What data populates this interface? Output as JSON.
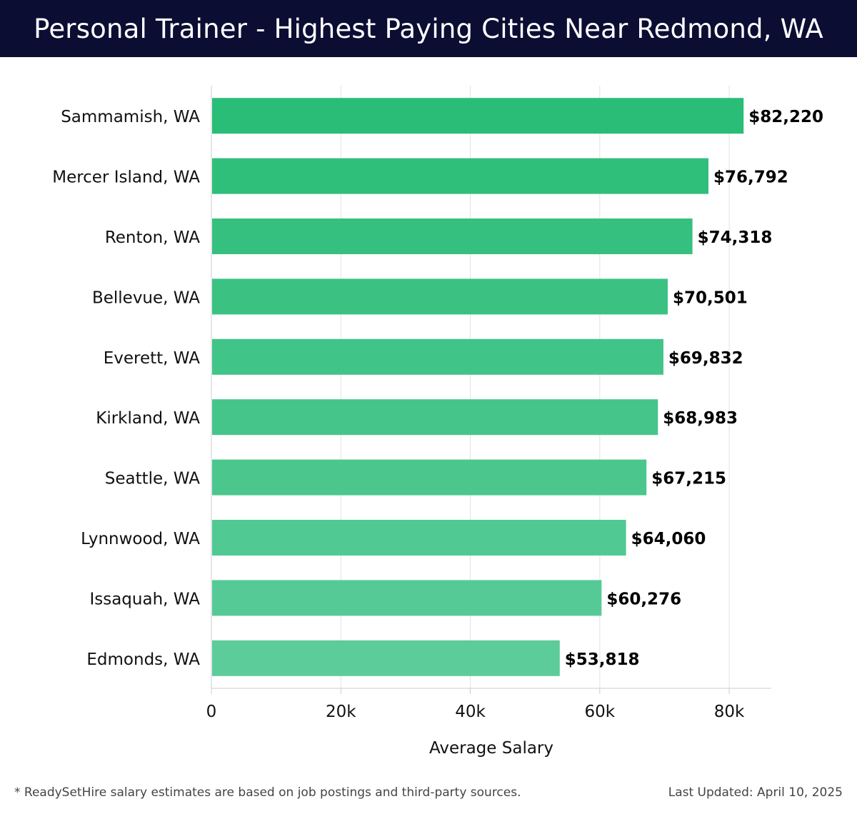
{
  "title": "Personal Trainer - Highest Paying Cities Near Redmond, WA",
  "footer": {
    "note": "* ReadySetHire salary estimates are based on job postings and third-party sources.",
    "updated": "Last Updated: April 10, 2025"
  },
  "colors": {
    "header_bg": "#0b0d33",
    "bar_top": "#2abd77",
    "bar_bottom": "#5ccc9a",
    "grid": "#e3e3e3",
    "axis": "#cccccc"
  },
  "chart_data": {
    "type": "bar",
    "orientation": "horizontal",
    "categories": [
      "Sammamish, WA",
      "Mercer Island, WA",
      "Renton, WA",
      "Bellevue, WA",
      "Everett, WA",
      "Kirkland, WA",
      "Seattle, WA",
      "Lynnwood, WA",
      "Issaquah, WA",
      "Edmonds, WA"
    ],
    "values": [
      82220,
      76792,
      74318,
      70501,
      69832,
      68983,
      67215,
      64060,
      60276,
      53818
    ],
    "value_labels": [
      "$82,220",
      "$76,792",
      "$74,318",
      "$70,501",
      "$69,832",
      "$68,983",
      "$67,215",
      "$64,060",
      "$60,276",
      "$53,818"
    ],
    "xlabel": "Average Salary",
    "xticks": [
      0,
      20000,
      40000,
      60000,
      80000
    ],
    "xtick_labels": [
      "0",
      "20k",
      "40k",
      "60k",
      "80k"
    ],
    "xlim": [
      0,
      86500
    ],
    "grid": true
  }
}
